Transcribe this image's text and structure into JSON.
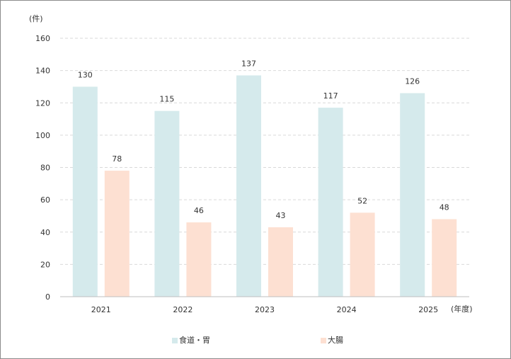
{
  "chart_data": {
    "type": "bar",
    "y_unit": "(件)",
    "x_unit": "(年度)",
    "categories": [
      "2021",
      "2022",
      "2023",
      "2024",
      "2025"
    ],
    "series": [
      {
        "name": "食道・胃",
        "values": [
          130,
          115,
          137,
          117,
          126
        ],
        "color": "#d5eaec"
      },
      {
        "name": "大腸",
        "values": [
          78,
          46,
          43,
          52,
          48
        ],
        "color": "#fde0d2"
      }
    ],
    "ylim": [
      0,
      160
    ],
    "yticks": [
      0,
      20,
      40,
      60,
      80,
      100,
      120,
      140,
      160
    ],
    "grid": true,
    "legend_position": "bottom"
  }
}
